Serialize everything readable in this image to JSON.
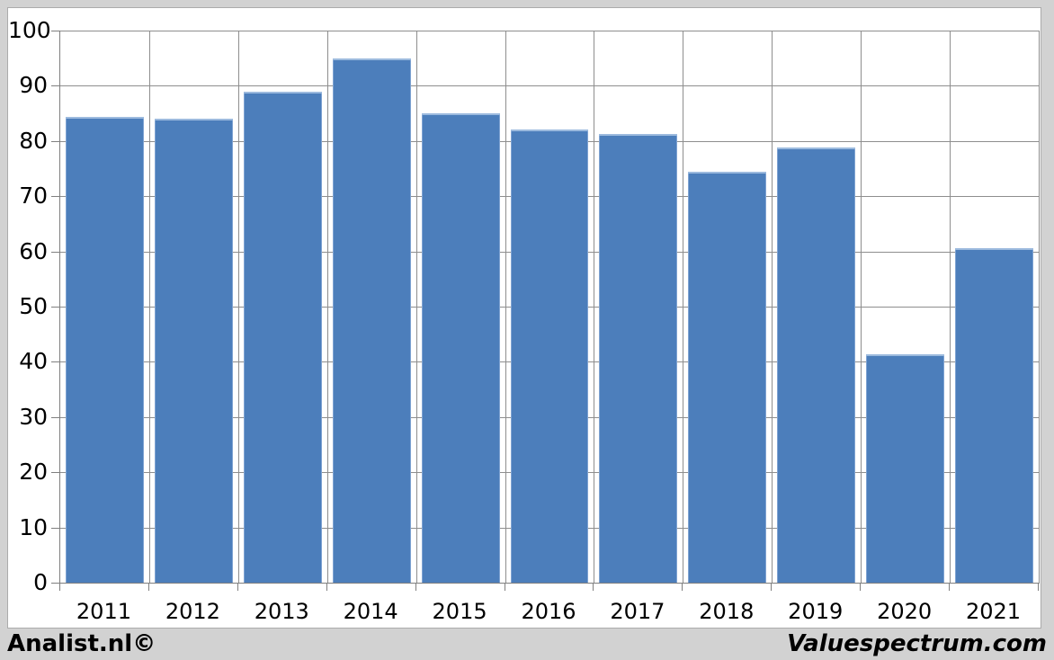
{
  "chart_data": {
    "type": "bar",
    "title": "",
    "xlabel": "",
    "ylabel": "",
    "categories": [
      "2011",
      "2012",
      "2013",
      "2014",
      "2015",
      "2016",
      "2017",
      "2018",
      "2019",
      "2020",
      "2021"
    ],
    "values": [
      84.4,
      84.1,
      88.9,
      94.9,
      85.0,
      82.1,
      81.3,
      74.5,
      78.8,
      41.4,
      60.6
    ],
    "ylim": [
      0,
      100
    ],
    "ytick_step": 10,
    "ytick_labels": [
      "0",
      "10",
      "20",
      "30",
      "40",
      "50",
      "60",
      "70",
      "80",
      "90",
      "100"
    ],
    "grid": true,
    "legend_position": "none",
    "bar_color": "#4c7ebb",
    "gridline_color": "#8e8e8e",
    "plot_background": "#ffffff",
    "outer_background": "#d2d2d2"
  },
  "footer": {
    "left_brand": "Analist.nl©",
    "right_brand": "Valuespectrum.com"
  }
}
